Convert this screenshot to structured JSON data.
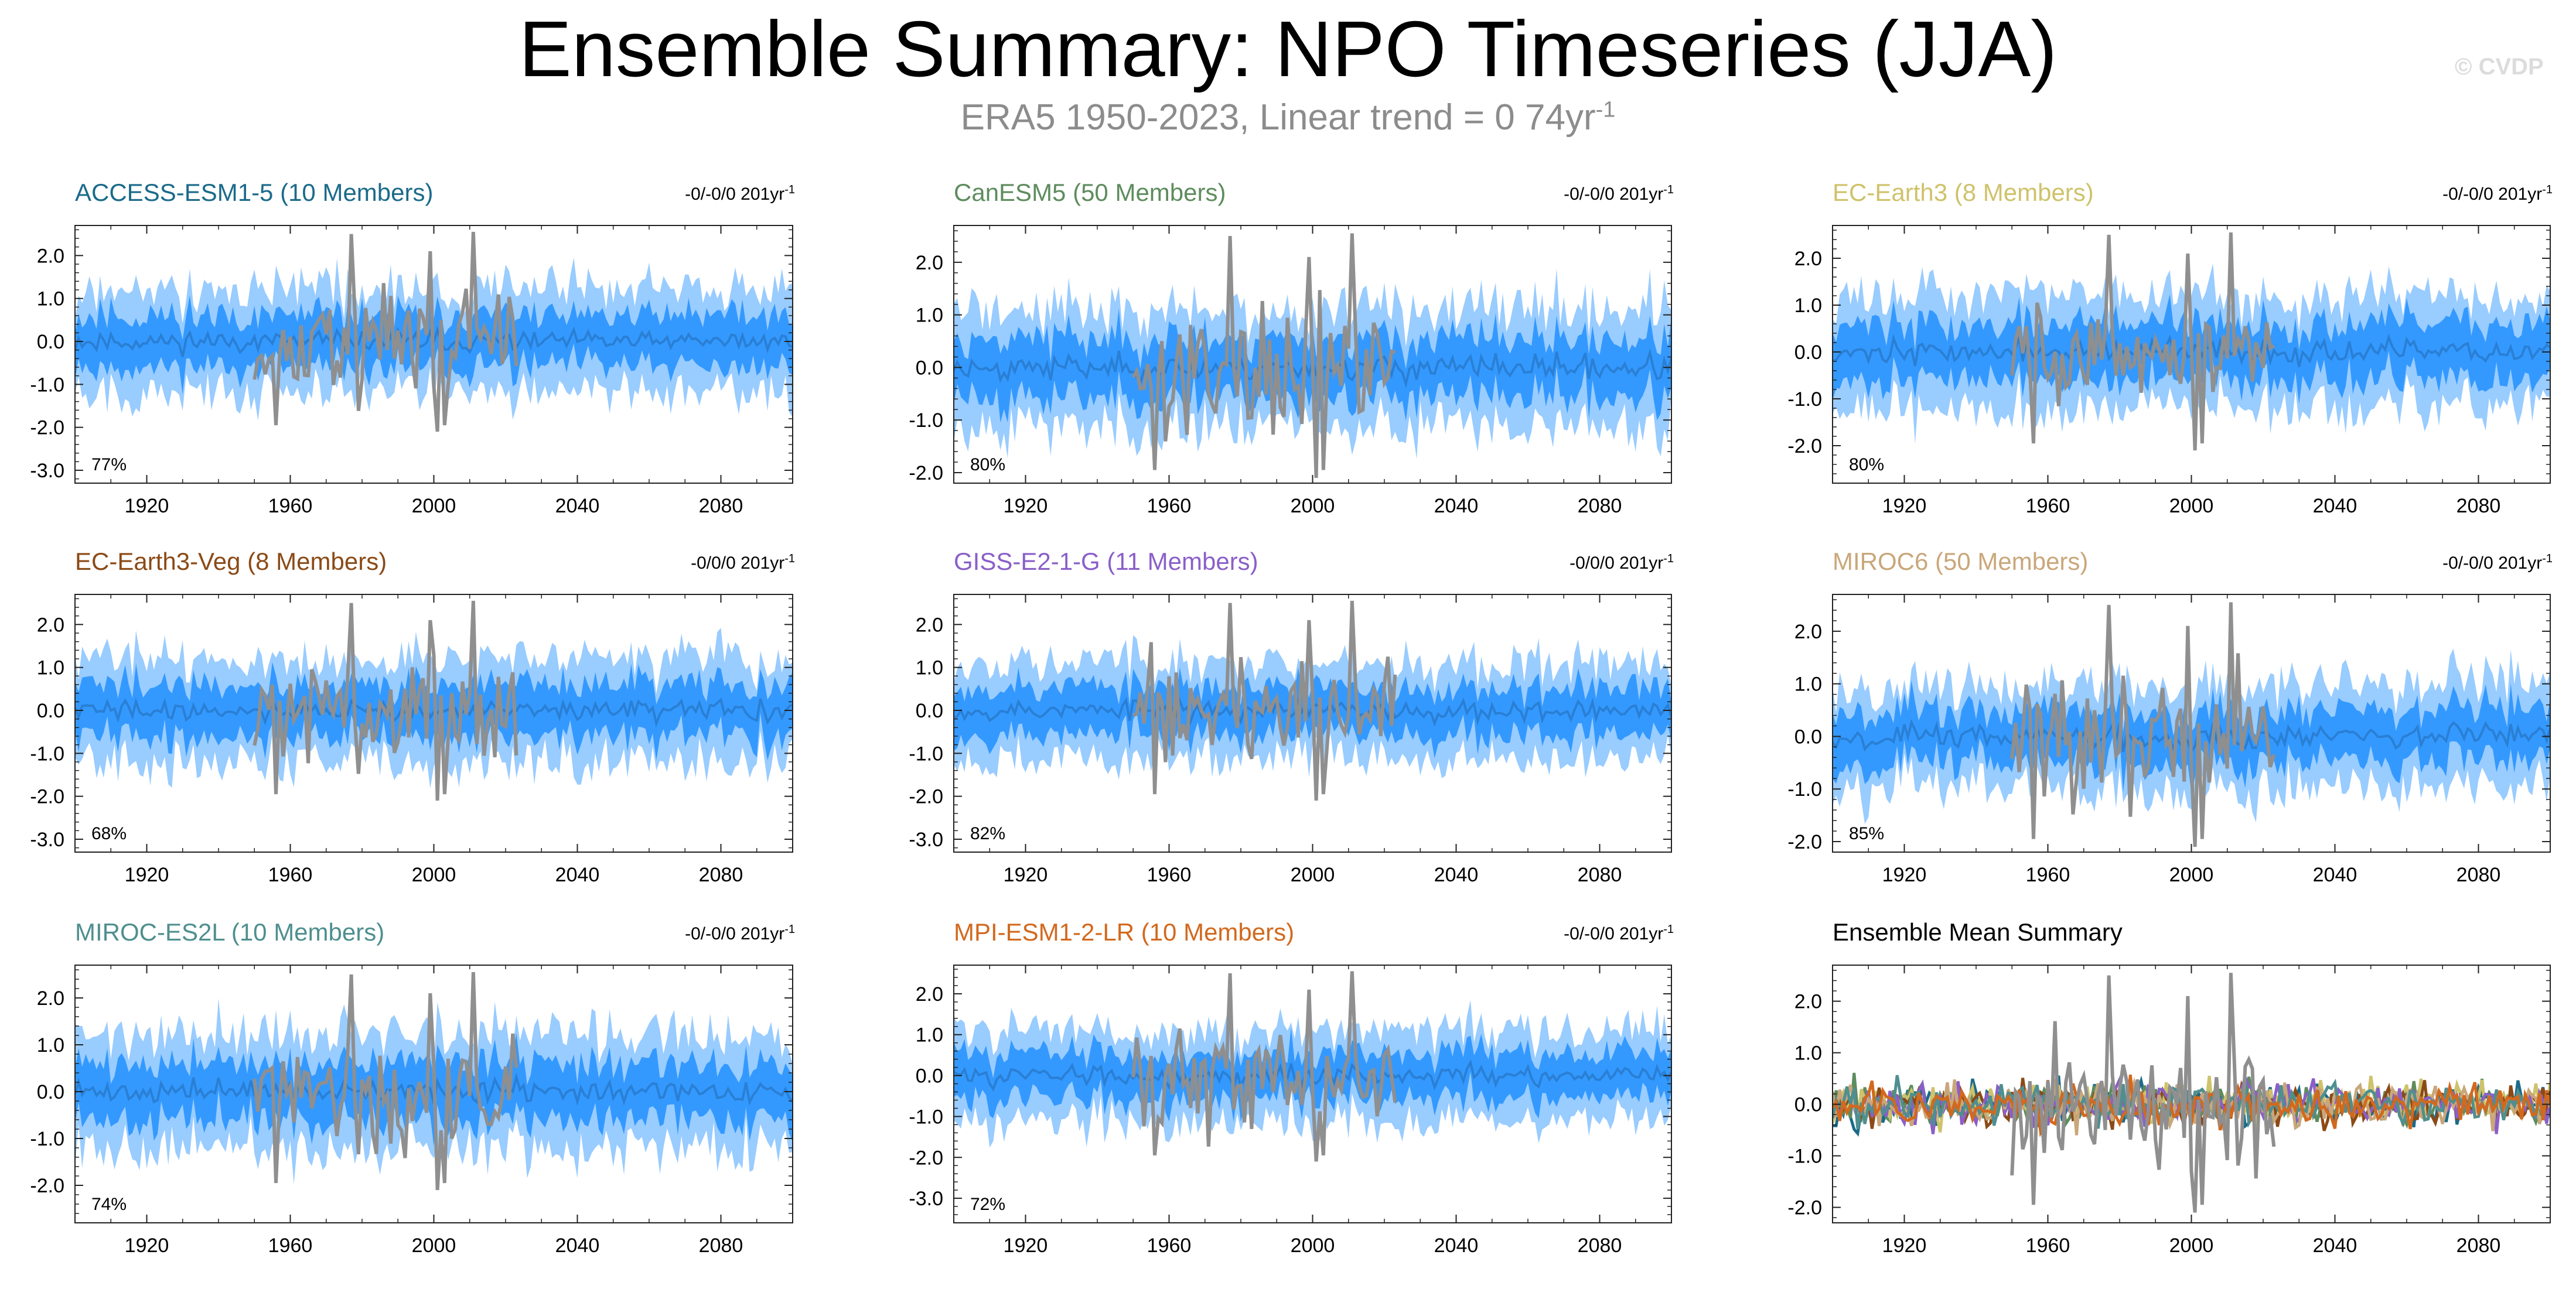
{
  "title": "Ensemble Summary: NPO Timeseries (JJA)",
  "subtitle": {
    "text": "ERA5 1950-2023, Linear trend = 0 74yr",
    "superscript": "-1"
  },
  "watermark": "© CVDP",
  "colors": {
    "obs": "#8f8f8f",
    "band_outer": "#99ccff",
    "band_inner": "#3399ff",
    "mean_line": "#2a7fd4"
  },
  "chart_data": [
    {
      "type": "area",
      "title": "ACCESS-ESM1-5 (10 Members)",
      "title_color": "#1b6b8a",
      "trend": "-0/-0/0 201yr",
      "trend_sup": "-1",
      "percent": "77%",
      "xlim": [
        1900,
        2100
      ],
      "ylim": [
        -3.3,
        2.7
      ],
      "yticks": [
        "2.0",
        "1.0",
        "0.0",
        "-1.0",
        "-2.0",
        "-3.0"
      ],
      "xticks": [
        "1920",
        "1960",
        "2000",
        "2040",
        "2080"
      ],
      "inner_half": 0.6,
      "outer_half": 1.2,
      "seed": 11
    },
    {
      "type": "area",
      "title": "CanESM5 (50 Members)",
      "title_color": "#5e8c5e",
      "trend": "-0/-0/0 201yr",
      "trend_sup": "-1",
      "percent": "80%",
      "xlim": [
        1900,
        2100
      ],
      "ylim": [
        -2.2,
        2.7
      ],
      "yticks": [
        "2.0",
        "1.0",
        "0.0",
        "-1.0",
        "-2.0"
      ],
      "xticks": [
        "1920",
        "1960",
        "2000",
        "2040",
        "2080"
      ],
      "inner_half": 0.55,
      "outer_half": 1.1,
      "seed": 23
    },
    {
      "type": "area",
      "title": "EC-Earth3 (8 Members)",
      "title_color": "#cfc26a",
      "trend": "-0/-0/0 201yr",
      "trend_sup": "-1",
      "percent": "80%",
      "xlim": [
        1900,
        2100
      ],
      "ylim": [
        -2.8,
        2.7
      ],
      "yticks": [
        "2.0",
        "1.0",
        "0.0",
        "-1.0",
        "-2.0"
      ],
      "xticks": [
        "1920",
        "1960",
        "2000",
        "2040",
        "2080"
      ],
      "inner_half": 0.6,
      "outer_half": 1.2,
      "seed": 37
    },
    {
      "type": "area",
      "title": "EC-Earth3-Veg (8 Members)",
      "title_color": "#8b4a16",
      "trend": "-0/0/0 201yr",
      "trend_sup": "-1",
      "percent": "68%",
      "xlim": [
        1900,
        2100
      ],
      "ylim": [
        -3.3,
        2.7
      ],
      "yticks": [
        "2.0",
        "1.0",
        "0.0",
        "-1.0",
        "-2.0",
        "-3.0"
      ],
      "xticks": [
        "1920",
        "1960",
        "2000",
        "2040",
        "2080"
      ],
      "inner_half": 0.6,
      "outer_half": 1.2,
      "seed": 41
    },
    {
      "type": "area",
      "title": "GISS-E2-1-G (11 Members)",
      "title_color": "#8a5fc8",
      "trend": "-0/0/0 201yr",
      "trend_sup": "-1",
      "percent": "82%",
      "xlim": [
        1900,
        2100
      ],
      "ylim": [
        -3.3,
        2.7
      ],
      "yticks": [
        "2.0",
        "1.0",
        "0.0",
        "-1.0",
        "-2.0",
        "-3.0"
      ],
      "xticks": [
        "1920",
        "1960",
        "2000",
        "2040",
        "2080"
      ],
      "inner_half": 0.55,
      "outer_half": 1.1,
      "seed": 53
    },
    {
      "type": "area",
      "title": "MIROC6 (50 Members)",
      "title_color": "#c9a77a",
      "trend": "-0/-0/0 201yr",
      "trend_sup": "-1",
      "percent": "85%",
      "xlim": [
        1900,
        2100
      ],
      "ylim": [
        -2.2,
        2.7
      ],
      "yticks": [
        "2.0",
        "1.0",
        "0.0",
        "-1.0",
        "-2.0"
      ],
      "xticks": [
        "1920",
        "1960",
        "2000",
        "2040",
        "2080"
      ],
      "inner_half": 0.5,
      "outer_half": 1.0,
      "seed": 67
    },
    {
      "type": "area",
      "title": "MIROC-ES2L (10 Members)",
      "title_color": "#4f8f8f",
      "trend": "-0/-0/0 201yr",
      "trend_sup": "-1",
      "percent": "74%",
      "xlim": [
        1900,
        2100
      ],
      "ylim": [
        -2.8,
        2.7
      ],
      "yticks": [
        "2.0",
        "1.0",
        "0.0",
        "-1.0",
        "-2.0"
      ],
      "xticks": [
        "1920",
        "1960",
        "2000",
        "2040",
        "2080"
      ],
      "inner_half": 0.6,
      "outer_half": 1.2,
      "seed": 71
    },
    {
      "type": "area",
      "title": "MPI-ESM1-2-LR (10 Members)",
      "title_color": "#d2691e",
      "trend": "-0/-0/0 201yr",
      "trend_sup": "-1",
      "percent": "72%",
      "xlim": [
        1900,
        2100
      ],
      "ylim": [
        -3.6,
        2.7
      ],
      "yticks": [
        "2.0",
        "1.0",
        "0.0",
        "-1.0",
        "-2.0",
        "-3.0"
      ],
      "xticks": [
        "1920",
        "1960",
        "2000",
        "2040",
        "2080"
      ],
      "inner_half": 0.55,
      "outer_half": 1.1,
      "seed": 83
    },
    {
      "type": "line",
      "title": "Ensemble Mean Summary",
      "title_color": "#000000",
      "xlim": [
        1900,
        2100
      ],
      "ylim": [
        -2.3,
        2.7
      ],
      "yticks": [
        "2.0",
        "1.0",
        "0.0",
        "-1.0",
        "-2.0"
      ],
      "xticks": [
        "1920",
        "1960",
        "2000",
        "2040",
        "2080"
      ],
      "line_colors": [
        "#1b6b8a",
        "#5e8c5e",
        "#cfc26a",
        "#8b4a16",
        "#8a5fc8",
        "#c9a77a",
        "#4f8f8f",
        "#d2691e"
      ],
      "seed": 97
    }
  ]
}
